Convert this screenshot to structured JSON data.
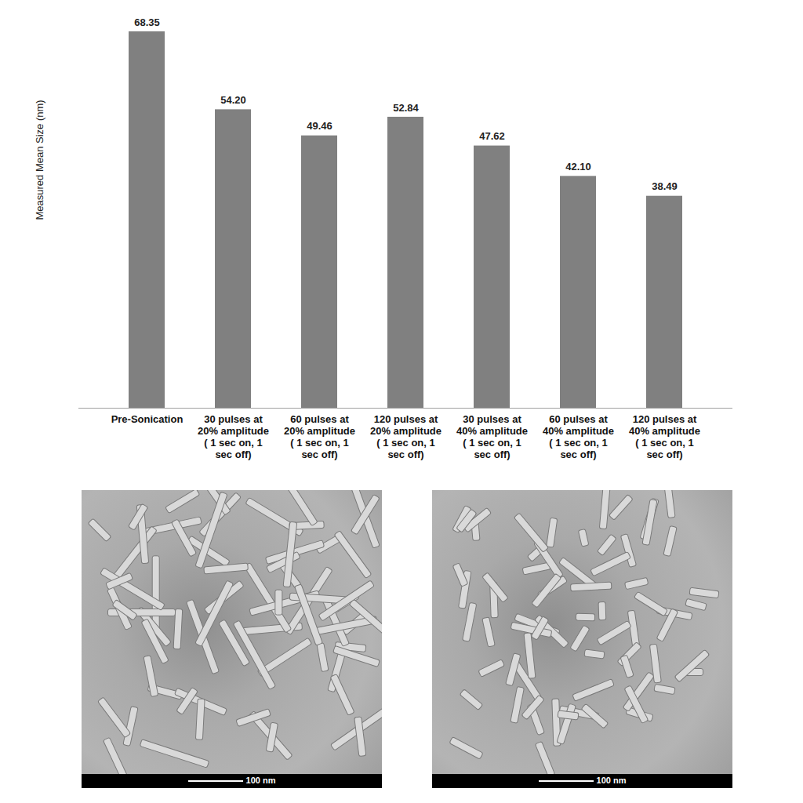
{
  "chart_data": {
    "type": "bar",
    "y_label": "Measured Mean Size (nm)",
    "categories": [
      "Pre-Sonication",
      "30 pulses at 20% amplitude ( 1 sec on, 1 sec off)",
      "60 pulses at 20% amplitude ( 1 sec on, 1 sec off)",
      "120 pulses at 20% amplitude ( 1 sec on, 1 sec off)",
      "30 pulses at 40% amplitude ( 1 sec on, 1 sec off)",
      "60 pulses at 40% amplitude ( 1 sec on, 1 sec off)",
      "120 pulses at 40% amplitude ( 1 sec on, 1 sec off)"
    ],
    "values": [
      68.35,
      54.2,
      49.46,
      52.84,
      47.62,
      42.1,
      38.49
    ],
    "value_labels": [
      "68.35",
      "54.20",
      "49.46",
      "52.84",
      "47.62",
      "42.10",
      "38.49"
    ],
    "color": "#808080",
    "ylim": [
      0,
      68.35
    ],
    "data_labels": true,
    "tick_labels": "x",
    "grid": false
  },
  "images": [
    {
      "scale_bar": "100 nm"
    },
    {
      "scale_bar": "100 nm"
    }
  ]
}
